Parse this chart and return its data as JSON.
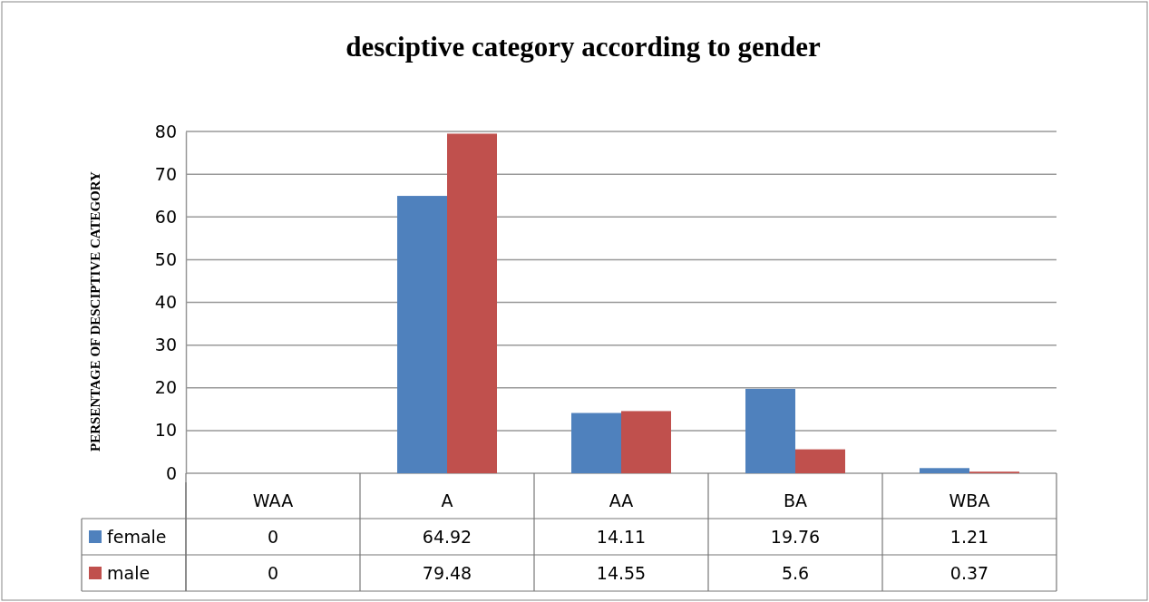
{
  "chart_data": {
    "type": "bar",
    "title": "desciptive category according to gender",
    "ylabel": "PERSENTAGE OF DESCIPTIVE CATEGORY",
    "categories": [
      "WAA",
      "A",
      "AA",
      "BA",
      "WBA"
    ],
    "series": [
      {
        "name": "female",
        "color": "#4f81bd",
        "values": [
          0,
          64.92,
          14.11,
          19.76,
          1.21
        ]
      },
      {
        "name": "male",
        "color": "#c0504d",
        "values": [
          0,
          79.48,
          14.55,
          5.6,
          0.37
        ]
      }
    ],
    "ylim": [
      0,
      80
    ],
    "yticks": [
      0,
      10,
      20,
      30,
      40,
      50,
      60,
      70,
      80
    ],
    "grid": "y",
    "legend": "bottom",
    "data_labels": true
  }
}
